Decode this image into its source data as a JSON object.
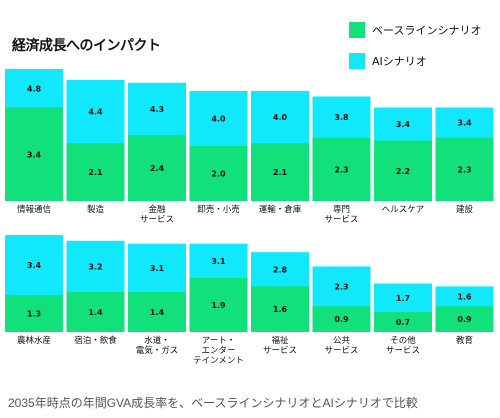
{
  "title": "経済成長へのインパクト",
  "caption": "2035年時点の年間GVA成長率を、ベースラインシナリオとAIシナリオで比較",
  "colors": {
    "baseline": "#12e07a",
    "ai": "#11e8fb",
    "text": "#111111"
  },
  "legend": [
    {
      "label": "ベースラインシナリオ",
      "color": "#12e07a"
    },
    {
      "label": "AIシナリオ",
      "color": "#11e8fb"
    }
  ],
  "chart_data": [
    {
      "type": "bar",
      "title": "",
      "categories": [
        "情報通信",
        "製造",
        "金融\nサービス",
        "卸売・小売",
        "運輸・倉庫",
        "専門\nサービス",
        "ヘルスケア",
        "建設"
      ],
      "series": [
        {
          "name": "ベースラインシナリオ",
          "values": [
            3.4,
            2.1,
            2.4,
            2.0,
            2.1,
            2.3,
            2.2,
            2.3
          ]
        },
        {
          "name": "AIシナリオ",
          "values": [
            4.8,
            4.4,
            4.3,
            4.0,
            4.0,
            3.8,
            3.4,
            3.4
          ]
        }
      ],
      "grid": false,
      "legend_position": "top-right"
    },
    {
      "type": "bar",
      "title": "",
      "categories": [
        "農林水産",
        "宿泊・飲食",
        "水道・\n電気・ガス",
        "アート・\nエンター\nテインメント",
        "福祉\nサービス",
        "公共\nサービス",
        "その他\nサービス",
        "教育"
      ],
      "series": [
        {
          "name": "ベースラインシナリオ",
          "values": [
            1.3,
            1.4,
            1.4,
            1.9,
            1.6,
            0.9,
            0.7,
            0.9
          ]
        },
        {
          "name": "AIシナリオ",
          "values": [
            3.4,
            3.2,
            3.1,
            3.1,
            2.8,
            2.3,
            1.7,
            1.6
          ]
        }
      ],
      "grid": false,
      "legend_position": "top-right"
    }
  ]
}
